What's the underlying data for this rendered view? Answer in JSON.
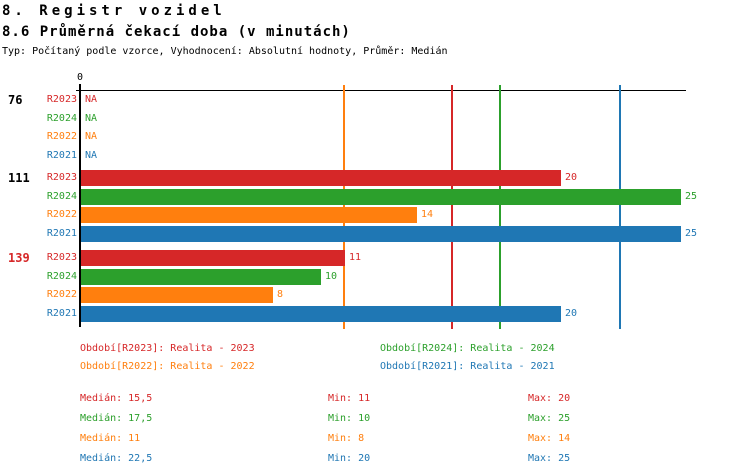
{
  "header": {
    "title": "8. Registr vozidel",
    "subtitle": "8.6 Průměrná čekací doba (v minutách)",
    "meta": "Typ: Počítaný podle vzorce, Vyhodnocení: Absolutní hodnoty, Průměr: Medián"
  },
  "chart_data": {
    "type": "bar",
    "orientation": "horizontal",
    "title": "8.6 Průměrná čekací doba (v minutách)",
    "xlabel": "",
    "ylabel": "",
    "axis": {
      "origin_label": "0",
      "min": 0,
      "max_visible": 25.25,
      "grid": false
    },
    "series": [
      {
        "id": "R2023",
        "label": "R2023",
        "color": "#d62728",
        "legend": "Období[R2023]: Realita - 2023",
        "median_value": 15.5,
        "stats": {
          "median": "15,5",
          "min": "11",
          "max": "20"
        }
      },
      {
        "id": "R2024",
        "label": "R2024",
        "color": "#2ca02c",
        "legend": "Období[R2024]: Realita - 2024",
        "median_value": 17.5,
        "stats": {
          "median": "17,5",
          "min": "10",
          "max": "25"
        }
      },
      {
        "id": "R2022",
        "label": "R2022",
        "color": "#ff7f0e",
        "legend": "Období[R2022]: Realita - 2022",
        "median_value": 11,
        "stats": {
          "median": "11",
          "min": "8",
          "max": "14"
        }
      },
      {
        "id": "R2021",
        "label": "R2021",
        "color": "#1f77b4",
        "legend": "Období[R2021]: Realita - 2021",
        "median_value": 22.5,
        "stats": {
          "median": "22,5",
          "min": "20",
          "max": "25"
        }
      }
    ],
    "row_order": [
      "R2023",
      "R2024",
      "R2022",
      "R2021"
    ],
    "groups": [
      {
        "label": "76",
        "label_color": "#000000",
        "values": {
          "R2023": null,
          "R2024": null,
          "R2022": null,
          "R2021": null
        },
        "display": {
          "R2023": "NA",
          "R2024": "NA",
          "R2022": "NA",
          "R2021": "NA"
        }
      },
      {
        "label": "111",
        "label_color": "#000000",
        "values": {
          "R2023": 20,
          "R2024": 25,
          "R2022": 14,
          "R2021": 25
        },
        "display": {
          "R2023": "20",
          "R2024": "25",
          "R2022": "14",
          "R2021": "25"
        }
      },
      {
        "label": "139",
        "label_color": "#d62728",
        "values": {
          "R2023": 11,
          "R2024": 10,
          "R2022": 8,
          "R2021": 20
        },
        "display": {
          "R2023": "11",
          "R2024": "10",
          "R2022": "8",
          "R2021": "20"
        }
      }
    ],
    "legend_layout": [
      [
        "R2023",
        "R2024"
      ],
      [
        "R2022",
        "R2021"
      ]
    ],
    "stats_labels": {
      "median": "Medián",
      "min": "Min",
      "max": "Max"
    }
  }
}
